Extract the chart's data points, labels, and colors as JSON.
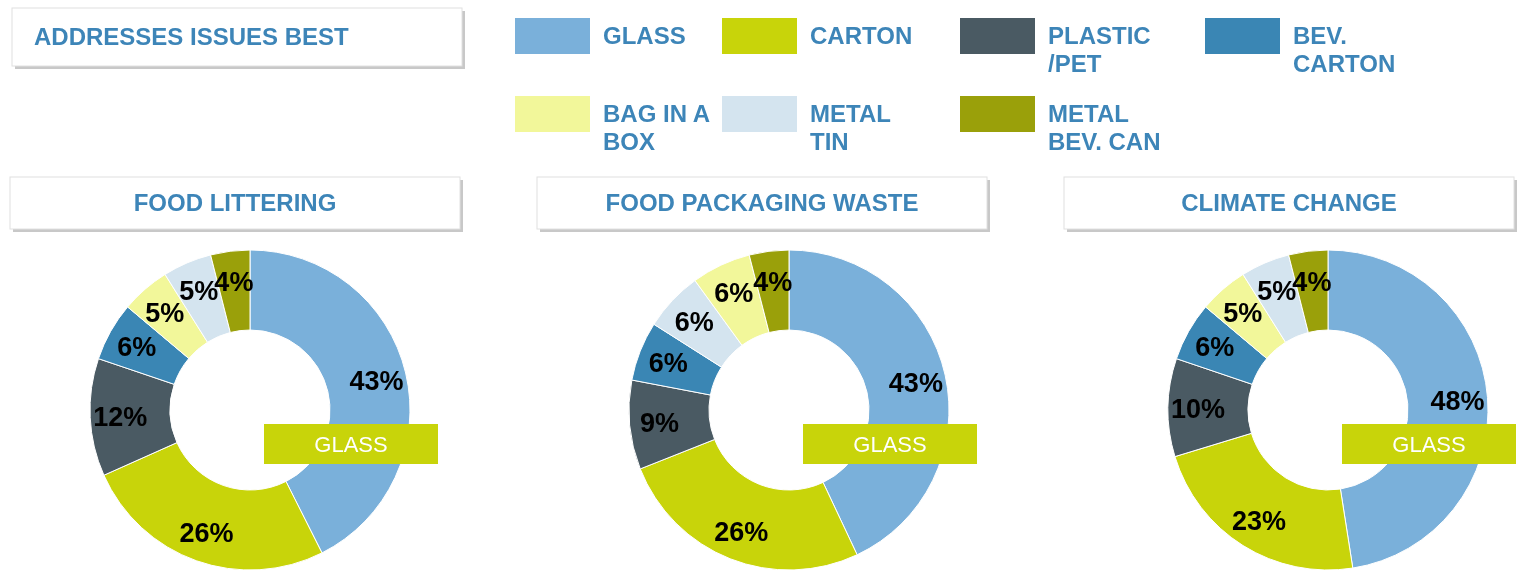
{
  "chart_data": [
    {
      "type": "other",
      "title": "ADDRESSES ISSUES BEST"
    },
    {
      "type": "donut",
      "title": "FOOD LITTERING",
      "legend": "top",
      "annotations": [
        "GLASS"
      ],
      "categories": [
        "GLASS",
        "CARTON",
        "PLASTIC /PET",
        "BEV. CARTON",
        "BAG IN A BOX",
        "METAL TIN",
        "METAL BEV. CAN"
      ],
      "values": [
        43,
        26,
        12,
        6,
        5,
        5,
        4
      ],
      "value_labels": [
        "43%",
        "26%",
        "12%",
        "6%",
        "5%",
        "5%",
        "4%"
      ],
      "colors": [
        "#7ab0da",
        "#c8d40a",
        "#4a5a63",
        "#3a86b4",
        "#f2f79a",
        "#d4e4ef",
        "#9aa00a"
      ]
    },
    {
      "type": "donut",
      "title": "FOOD PACKAGING WASTE",
      "legend": false,
      "annotations": [
        "GLASS"
      ],
      "categories": [
        null,
        null,
        null,
        null,
        null,
        null,
        null
      ],
      "values": [
        43,
        26,
        9,
        6,
        6,
        6,
        4
      ],
      "value_labels": [
        "43%",
        "26%",
        "9%",
        "6%",
        "6%",
        "6%",
        "4%"
      ],
      "colors": [
        "#7ab0da",
        "#c8d40a",
        "#4a5a63",
        "#3a86b4",
        "#d4e4ef",
        "#f2f79a",
        "#9aa00a"
      ]
    },
    {
      "type": "donut",
      "title": "CLIMATE CHANGE",
      "legend": false,
      "annotations": [
        "GLASS"
      ],
      "categories": [
        null,
        null,
        null,
        null,
        null,
        null,
        null
      ],
      "values": [
        48,
        23,
        10,
        6,
        5,
        5,
        4
      ],
      "value_labels": [
        "48%",
        "23%",
        "10%",
        "6%",
        "5%",
        "5%",
        "4%"
      ],
      "colors": [
        "#7ab0da",
        "#c8d40a",
        "#4a5a63",
        "#3a86b4",
        "#f2f79a",
        "#d4e4ef",
        "#9aa00a"
      ]
    }
  ]
}
